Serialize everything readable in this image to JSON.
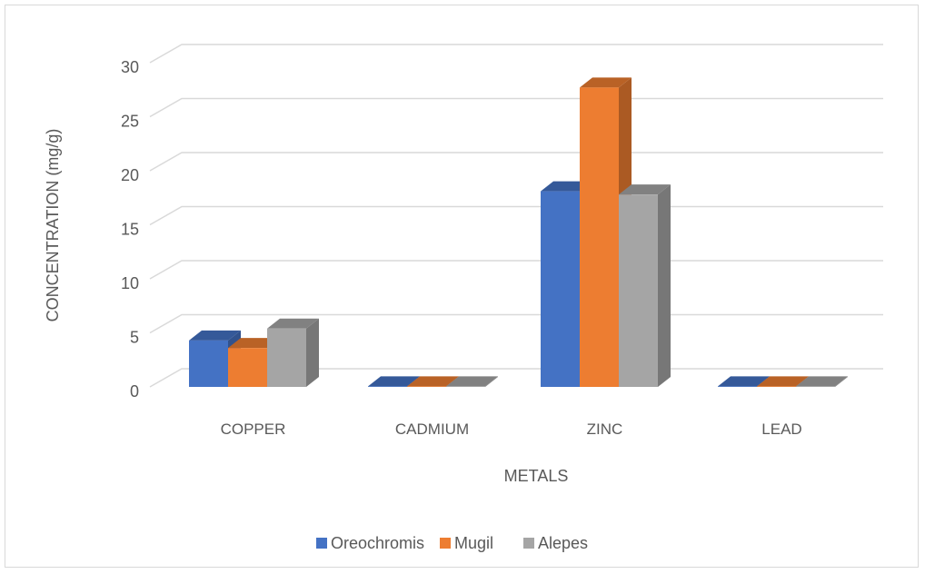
{
  "chart_data": {
    "type": "bar",
    "style": "3d-clustered-column",
    "xlabel": "METALS",
    "ylabel": "CONCENTRATION (mg/g)",
    "categories": [
      "COPPER",
      "CADMIUM",
      "ZINC",
      "LEAD"
    ],
    "ylim": [
      0,
      30
    ],
    "yticks": [
      0,
      5,
      10,
      15,
      20,
      25,
      30
    ],
    "grid": true,
    "legend_position": "bottom",
    "series": [
      {
        "name": "Oreochromis",
        "color": "#4472C4",
        "values": [
          4.3,
          0.05,
          18.1,
          0.05
        ]
      },
      {
        "name": "Mugil",
        "color": "#ED7D31",
        "values": [
          3.6,
          0.05,
          27.7,
          0.05
        ]
      },
      {
        "name": "Alepes",
        "color": "#A5A5A5",
        "values": [
          5.4,
          0.05,
          17.8,
          0.05
        ]
      }
    ]
  }
}
